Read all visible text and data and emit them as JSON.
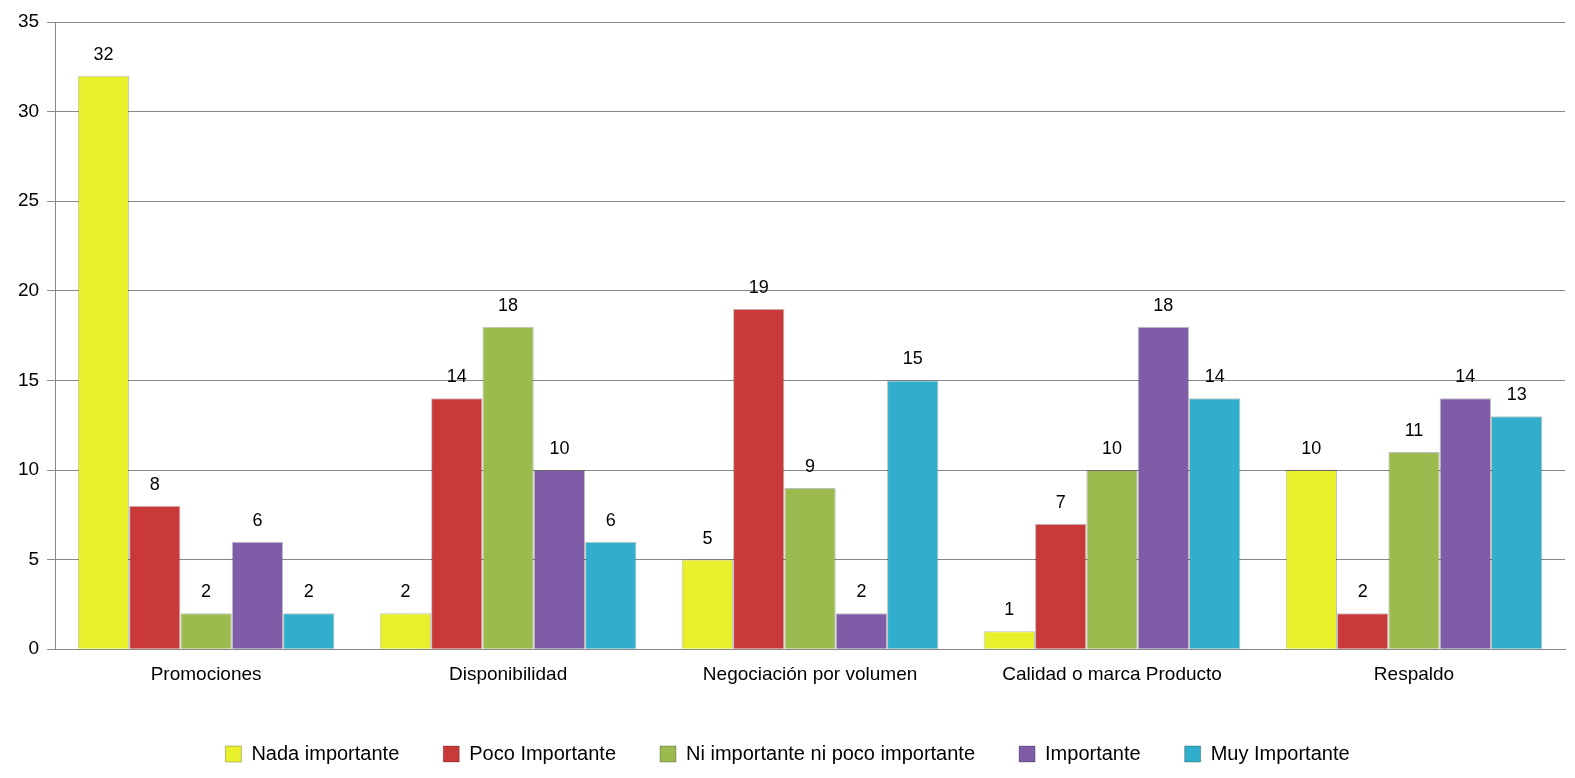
{
  "chart_data": {
    "type": "bar",
    "categories": [
      "Promociones",
      "Disponibilidad",
      "Negociación por volumen",
      "Calidad o marca Producto",
      "Respaldo"
    ],
    "series": [
      {
        "name": "Nada importante",
        "color": "#e8f02c",
        "values": [
          32,
          2,
          5,
          1,
          10
        ]
      },
      {
        "name": "Poco Importante",
        "color": "#c9393a",
        "values": [
          8,
          14,
          19,
          7,
          2
        ]
      },
      {
        "name": "Ni importante ni poco importante",
        "color": "#9bbb4f",
        "values": [
          2,
          18,
          9,
          10,
          11
        ]
      },
      {
        "name": "Importante",
        "color": "#7e5ca8",
        "values": [
          6,
          10,
          2,
          18,
          14
        ]
      },
      {
        "name": "Muy Importante",
        "color": "#30aecb",
        "values": [
          2,
          6,
          15,
          14,
          13
        ]
      }
    ],
    "ylim": [
      0,
      35
    ],
    "yticks": [
      0,
      5,
      10,
      15,
      20,
      25,
      30,
      35
    ],
    "grid": "y",
    "legend": "bottom",
    "data_labels": true
  }
}
